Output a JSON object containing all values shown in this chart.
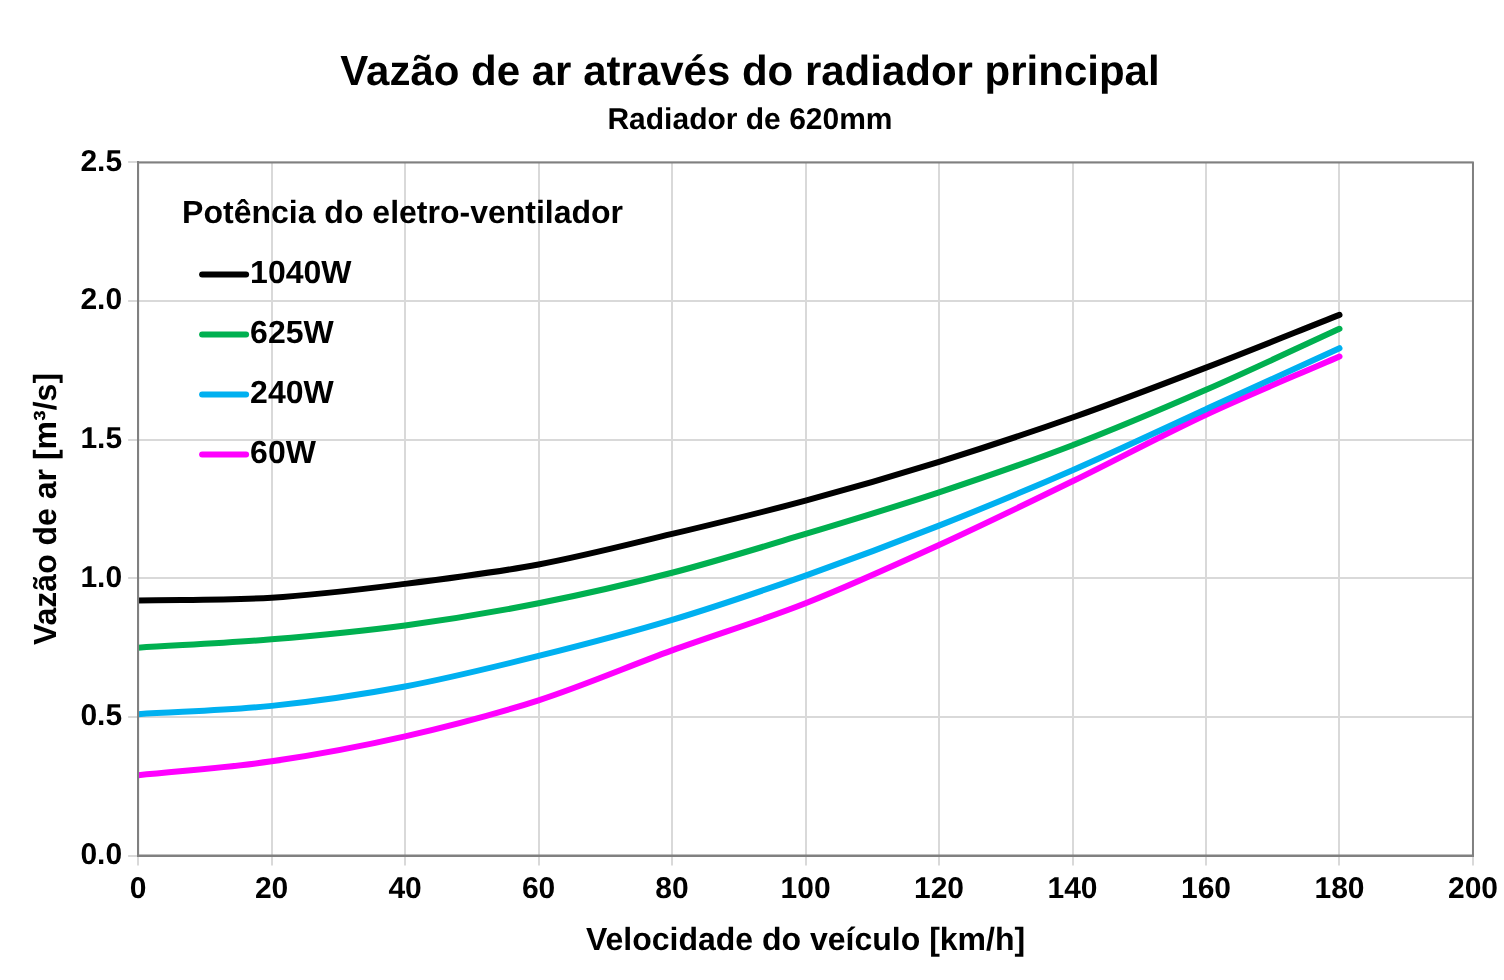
{
  "chart_data": {
    "type": "line",
    "title": "Vazão de ar através do radiador principal",
    "subtitle": "Radiador de 620mm",
    "xlabel": "Velocidade do veículo [km/h]",
    "ylabel": "Vazão de ar [m³/s]",
    "legend_title": "Potência do eletro-ventilador",
    "x": [
      0,
      20,
      40,
      60,
      80,
      100,
      120,
      140,
      160,
      180
    ],
    "series": [
      {
        "name": "1040W",
        "color": "#000000",
        "values": [
          0.92,
          0.93,
          0.98,
          1.05,
          1.16,
          1.28,
          1.42,
          1.58,
          1.76,
          1.95
        ]
      },
      {
        "name": "625W",
        "color": "#00b050",
        "values": [
          0.75,
          0.78,
          0.83,
          0.91,
          1.02,
          1.16,
          1.31,
          1.48,
          1.68,
          1.9
        ]
      },
      {
        "name": "240W",
        "color": "#00b0f0",
        "values": [
          0.51,
          0.54,
          0.61,
          0.72,
          0.85,
          1.01,
          1.19,
          1.39,
          1.61,
          1.83
        ]
      },
      {
        "name": "60W",
        "color": "#ff00ff",
        "values": [
          0.29,
          0.34,
          0.43,
          0.56,
          0.74,
          0.91,
          1.12,
          1.35,
          1.59,
          1.8
        ]
      }
    ],
    "xlim": [
      0,
      200
    ],
    "xticks": [
      0,
      20,
      40,
      60,
      80,
      100,
      120,
      140,
      160,
      180,
      200
    ],
    "ylim": [
      0,
      2.5
    ],
    "yticks": [
      {
        "value": 0,
        "label": "0.0"
      },
      {
        "value": 0.5,
        "label": "0.5"
      },
      {
        "value": 1,
        "label": "1.0"
      },
      {
        "value": 1.5,
        "label": "1.5"
      },
      {
        "value": 2,
        "label": "2.0"
      },
      {
        "value": 2.5,
        "label": "2.5"
      }
    ],
    "grid": true,
    "legend": "top left",
    "marker": "none",
    "line_style": "solid"
  }
}
